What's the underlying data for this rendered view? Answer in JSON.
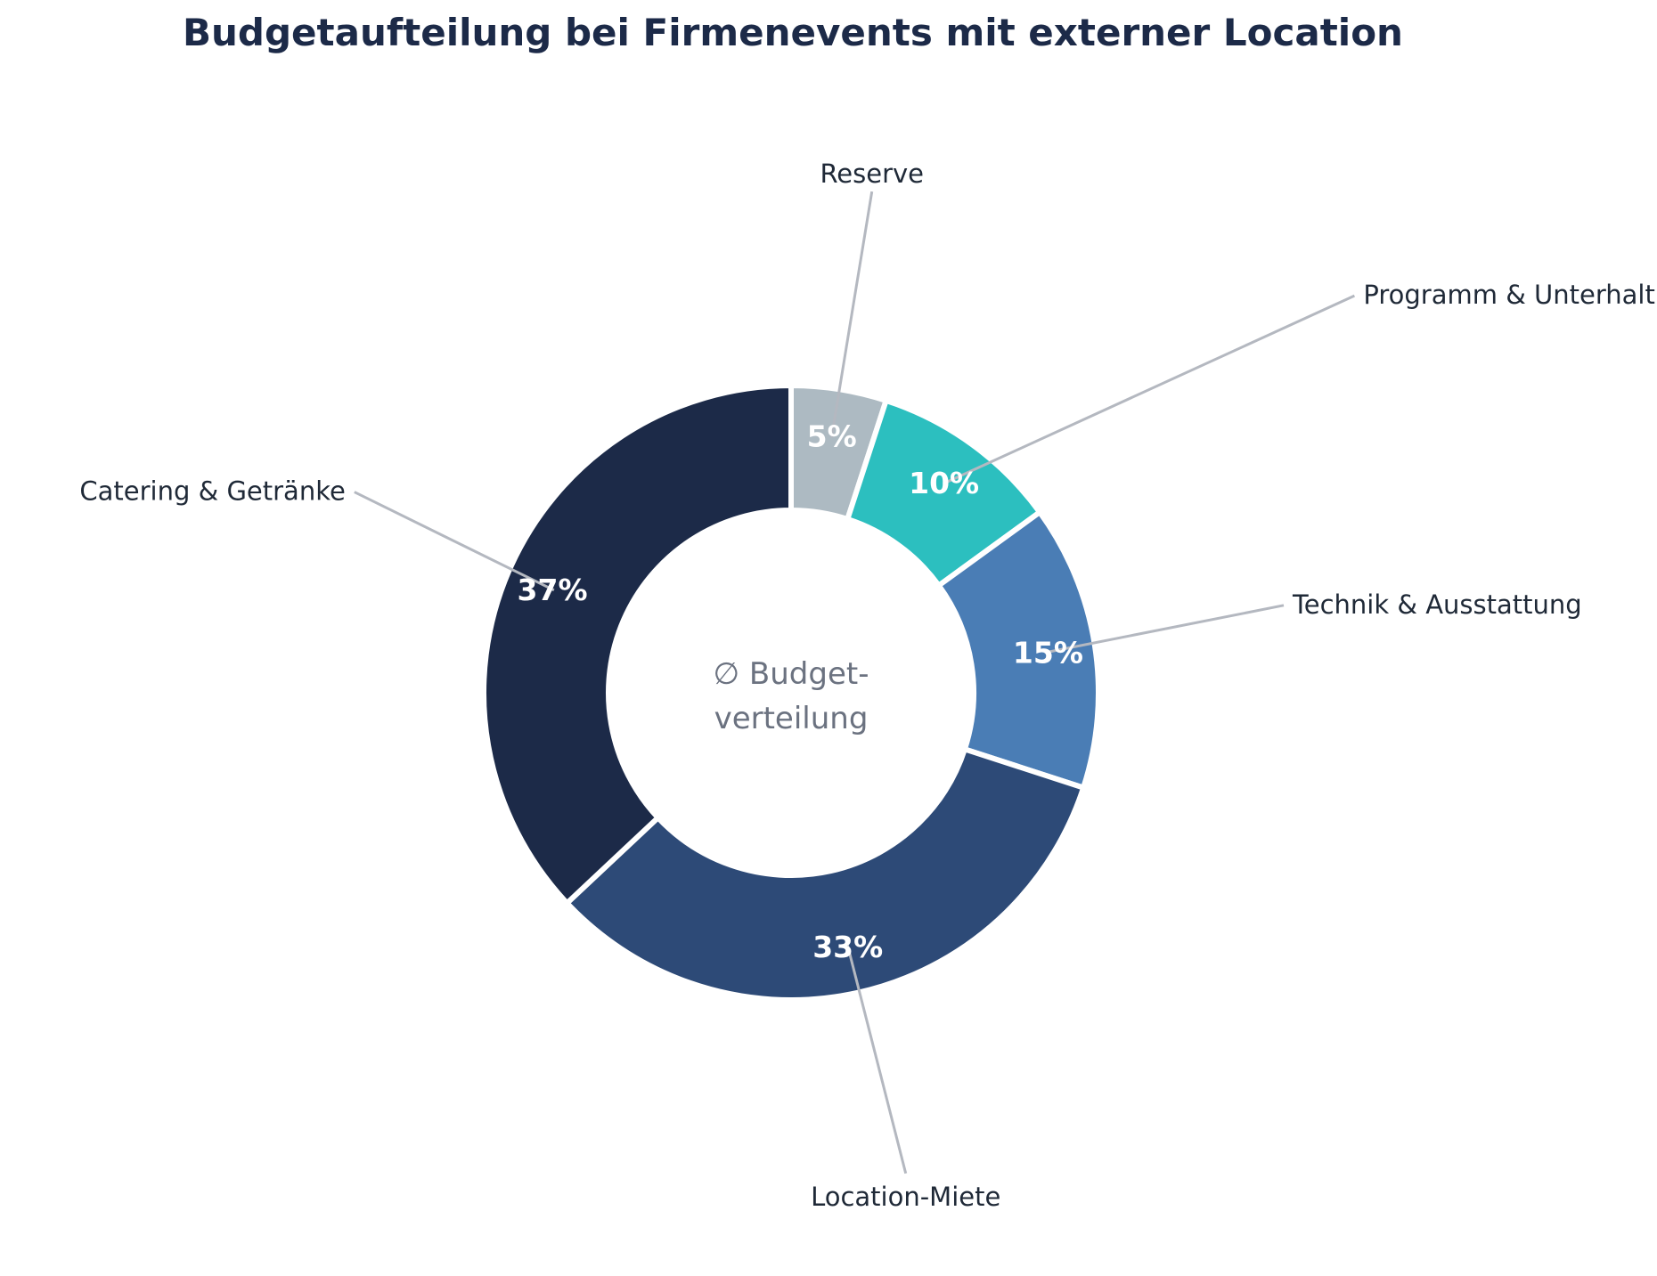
{
  "chart_data": {
    "type": "pie",
    "variant": "donut",
    "title": "Budgetaufteilung bei Firmenevents mit externer Location",
    "center_text": [
      "∅ Budget-",
      "verteilung"
    ],
    "unit": "%",
    "slices": [
      {
        "label": "Reserve",
        "value": 5,
        "value_label": "5%",
        "color": "#adbac2"
      },
      {
        "label": "Programm & Unterhaltung",
        "value": 10,
        "value_label": "10%",
        "color": "#2cbfbf"
      },
      {
        "label": "Technik & Ausstattung",
        "value": 15,
        "value_label": "15%",
        "color": "#4a7db5"
      },
      {
        "label": "Location-Miete",
        "value": 33,
        "value_label": "33%",
        "color": "#2d4a77"
      },
      {
        "label": "Catering & Getränke",
        "value": 37,
        "value_label": "37%",
        "color": "#1c2a48"
      }
    ],
    "start_angle": "12 o'clock",
    "direction": "clockwise",
    "legend": "none (callout labels)"
  }
}
